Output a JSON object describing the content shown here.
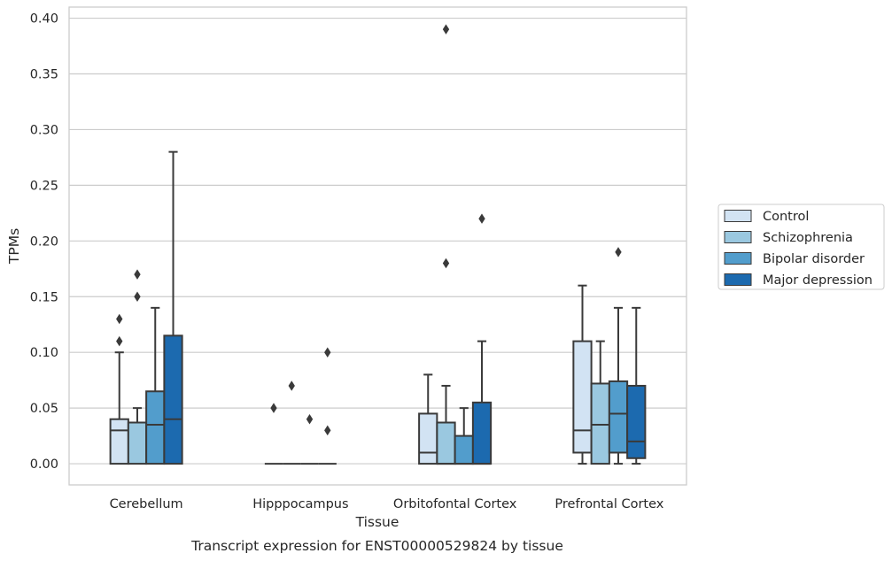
{
  "caption": "Transcript expression for ENST00000529824 by tissue",
  "chart_data": {
    "type": "box",
    "xlabel": "Tissue",
    "ylabel": "TPMs",
    "ylim": [
      -0.019,
      0.41
    ],
    "yticks": [
      0.0,
      0.05,
      0.1,
      0.15,
      0.2,
      0.25,
      0.3,
      0.35,
      0.4
    ],
    "ytick_labels": [
      "0.00",
      "0.05",
      "0.10",
      "0.15",
      "0.20",
      "0.25",
      "0.30",
      "0.35",
      "0.40"
    ],
    "grid": "horizontal",
    "legend_position": "right",
    "categories": [
      "Cerebellum",
      "Hipppocampus",
      "Orbitofontal Cortex",
      "Prefrontal Cortex"
    ],
    "series": [
      {
        "name": "Control",
        "color": "#d2e3f3",
        "boxes": [
          {
            "whislo": 0.0,
            "q1": 0.0,
            "med": 0.03,
            "q3": 0.04,
            "whishi": 0.1,
            "fliers": [
              0.11,
              0.13
            ]
          },
          {
            "whislo": 0.0,
            "q1": 0.0,
            "med": 0.0,
            "q3": 0.0,
            "whishi": 0.0,
            "fliers": [
              0.05
            ]
          },
          {
            "whislo": 0.0,
            "q1": 0.0,
            "med": 0.01,
            "q3": 0.045,
            "whishi": 0.08,
            "fliers": []
          },
          {
            "whislo": 0.0,
            "q1": 0.01,
            "med": 0.03,
            "q3": 0.11,
            "whishi": 0.16,
            "fliers": []
          }
        ]
      },
      {
        "name": "Schizophrenia",
        "color": "#9ac8e0",
        "boxes": [
          {
            "whislo": 0.0,
            "q1": 0.0,
            "med": 0.037,
            "q3": 0.037,
            "whishi": 0.05,
            "fliers": [
              0.15,
              0.17
            ]
          },
          {
            "whislo": 0.0,
            "q1": 0.0,
            "med": 0.0,
            "q3": 0.0,
            "whishi": 0.0,
            "fliers": [
              0.07
            ]
          },
          {
            "whislo": 0.0,
            "q1": 0.0,
            "med": 0.0,
            "q3": 0.037,
            "whishi": 0.07,
            "fliers": [
              0.18,
              0.39
            ]
          },
          {
            "whislo": 0.0,
            "q1": 0.0,
            "med": 0.035,
            "q3": 0.072,
            "whishi": 0.11,
            "fliers": []
          }
        ]
      },
      {
        "name": "Bipolar disorder",
        "color": "#529dcc",
        "boxes": [
          {
            "whislo": 0.0,
            "q1": 0.0,
            "med": 0.035,
            "q3": 0.065,
            "whishi": 0.14,
            "fliers": []
          },
          {
            "whislo": 0.0,
            "q1": 0.0,
            "med": 0.0,
            "q3": 0.0,
            "whishi": 0.0,
            "fliers": [
              0.04
            ]
          },
          {
            "whislo": 0.0,
            "q1": 0.0,
            "med": 0.0,
            "q3": 0.025,
            "whishi": 0.05,
            "fliers": []
          },
          {
            "whislo": 0.0,
            "q1": 0.01,
            "med": 0.045,
            "q3": 0.074,
            "whishi": 0.14,
            "fliers": [
              0.19
            ]
          }
        ]
      },
      {
        "name": "Major depression",
        "color": "#1c6aaf",
        "boxes": [
          {
            "whislo": 0.0,
            "q1": 0.0,
            "med": 0.04,
            "q3": 0.115,
            "whishi": 0.28,
            "fliers": []
          },
          {
            "whislo": 0.0,
            "q1": 0.0,
            "med": 0.0,
            "q3": 0.0,
            "whishi": 0.0,
            "fliers": [
              0.03,
              0.1
            ]
          },
          {
            "whislo": 0.0,
            "q1": 0.0,
            "med": 0.0,
            "q3": 0.055,
            "whishi": 0.11,
            "fliers": [
              0.22
            ]
          },
          {
            "whislo": 0.0,
            "q1": 0.005,
            "med": 0.02,
            "q3": 0.07,
            "whishi": 0.14,
            "fliers": []
          }
        ]
      }
    ]
  }
}
